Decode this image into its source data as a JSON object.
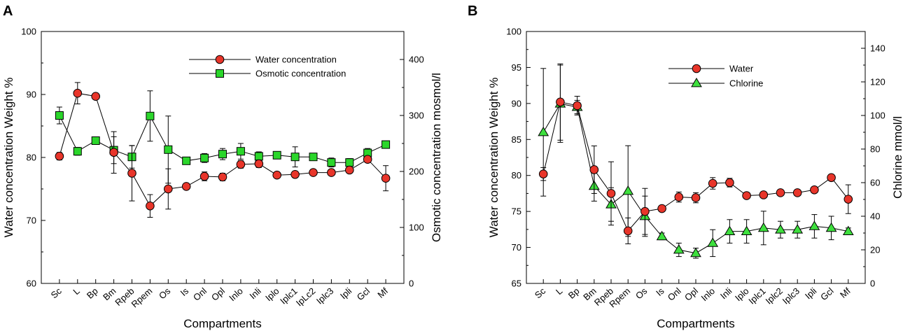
{
  "chart_data": [
    {
      "type": "line",
      "panel": "A",
      "xlabel": "Compartments",
      "ylabel": "Water concentration Weight %",
      "y2label": "Osmotic concentration mosmol/l",
      "ylim": [
        60,
        100
      ],
      "y_ticks": [
        "60",
        "70",
        "80",
        "90",
        "100"
      ],
      "y2lim": [
        0,
        450
      ],
      "y2_ticks": [
        "0",
        "100",
        "200",
        "300",
        "400"
      ],
      "categories": [
        "Sc",
        "L",
        "Bp",
        "Bm",
        "Rpeb",
        "Rpem",
        "Os",
        "Is",
        "Onl",
        "Opl",
        "Inlo",
        "Inli",
        "Iplo",
        "Iplc1",
        "IpLc2",
        "Iplc3",
        "Ipli",
        "Gcl",
        "Mf"
      ],
      "series": [
        {
          "name": "Water concentration",
          "axis": "left",
          "marker": "circle",
          "color": "#e8352a",
          "values": [
            80.2,
            90.2,
            89.7,
            80.8,
            77.5,
            72.3,
            75.0,
            75.4,
            77.0,
            76.9,
            78.9,
            79.0,
            77.2,
            77.3,
            77.6,
            77.6,
            78.0,
            79.7,
            76.7
          ],
          "errors": [
            0.6,
            1.7,
            0,
            3.3,
            4.4,
            1.8,
            3.2,
            0,
            0.7,
            0.6,
            0.6,
            0.6,
            0,
            0,
            0,
            0,
            0,
            0.5,
            2.0
          ]
        },
        {
          "name": "Osmotic concentration",
          "axis": "right",
          "marker": "square",
          "color": "#2bd62b",
          "values": [
            300,
            236,
            255,
            238,
            226,
            299,
            239,
            219,
            224,
            231,
            236,
            227,
            229,
            226,
            226,
            216,
            216,
            233,
            248
          ],
          "errors": [
            15,
            7,
            0,
            24,
            20,
            45,
            60,
            0,
            8,
            10,
            14,
            8,
            0,
            18,
            0,
            8,
            7,
            8,
            0
          ]
        }
      ]
    },
    {
      "type": "line",
      "panel": "B",
      "xlabel": "Compartments",
      "ylabel": "Water concentration Weight %",
      "y2label": "Chlorine mmol/l",
      "ylim": [
        65,
        100
      ],
      "y_ticks": [
        "65",
        "70",
        "75",
        "80",
        "85",
        "90",
        "95",
        "100"
      ],
      "y2lim": [
        0,
        150
      ],
      "y2_ticks": [
        "0",
        "20",
        "40",
        "60",
        "80",
        "100",
        "120",
        "140"
      ],
      "categories": [
        "Sc",
        "L",
        "Bp",
        "Bm",
        "Rpeb",
        "Rpem",
        "Os",
        "Is",
        "Onl",
        "Opl",
        "Inlo",
        "Inli",
        "Iplo",
        "Iplc1",
        "Iplc2",
        "Iplc3",
        "Ipli",
        "Gcl",
        "Mf"
      ],
      "series": [
        {
          "name": "Water",
          "axis": "left",
          "marker": "circle",
          "color": "#e8352a",
          "values": [
            80.2,
            90.2,
            89.7,
            80.8,
            77.5,
            72.3,
            75.0,
            75.4,
            77.0,
            76.9,
            78.9,
            79.0,
            77.2,
            77.3,
            77.6,
            77.6,
            78.0,
            79.7,
            76.7
          ],
          "errors": [
            0.9,
            5.3,
            1.3,
            3.3,
            4.4,
            1.8,
            3.2,
            0,
            0.7,
            0.7,
            0.8,
            0.6,
            0,
            0,
            0,
            0,
            0,
            0,
            2.0
          ]
        },
        {
          "name": "Chlorine",
          "axis": "right",
          "marker": "triangle",
          "color": "#3ee03e",
          "values": [
            90,
            107,
            105,
            58,
            47,
            55,
            40,
            28,
            20,
            18,
            24,
            31,
            31,
            33,
            32,
            32,
            34,
            33,
            31
          ],
          "errors": [
            38,
            23,
            4,
            9,
            10,
            27,
            12,
            2,
            4,
            3,
            8,
            7,
            7,
            10,
            5,
            5,
            7,
            7,
            2
          ]
        }
      ]
    }
  ],
  "labels": {
    "panel_a": "A",
    "panel_b": "B"
  }
}
